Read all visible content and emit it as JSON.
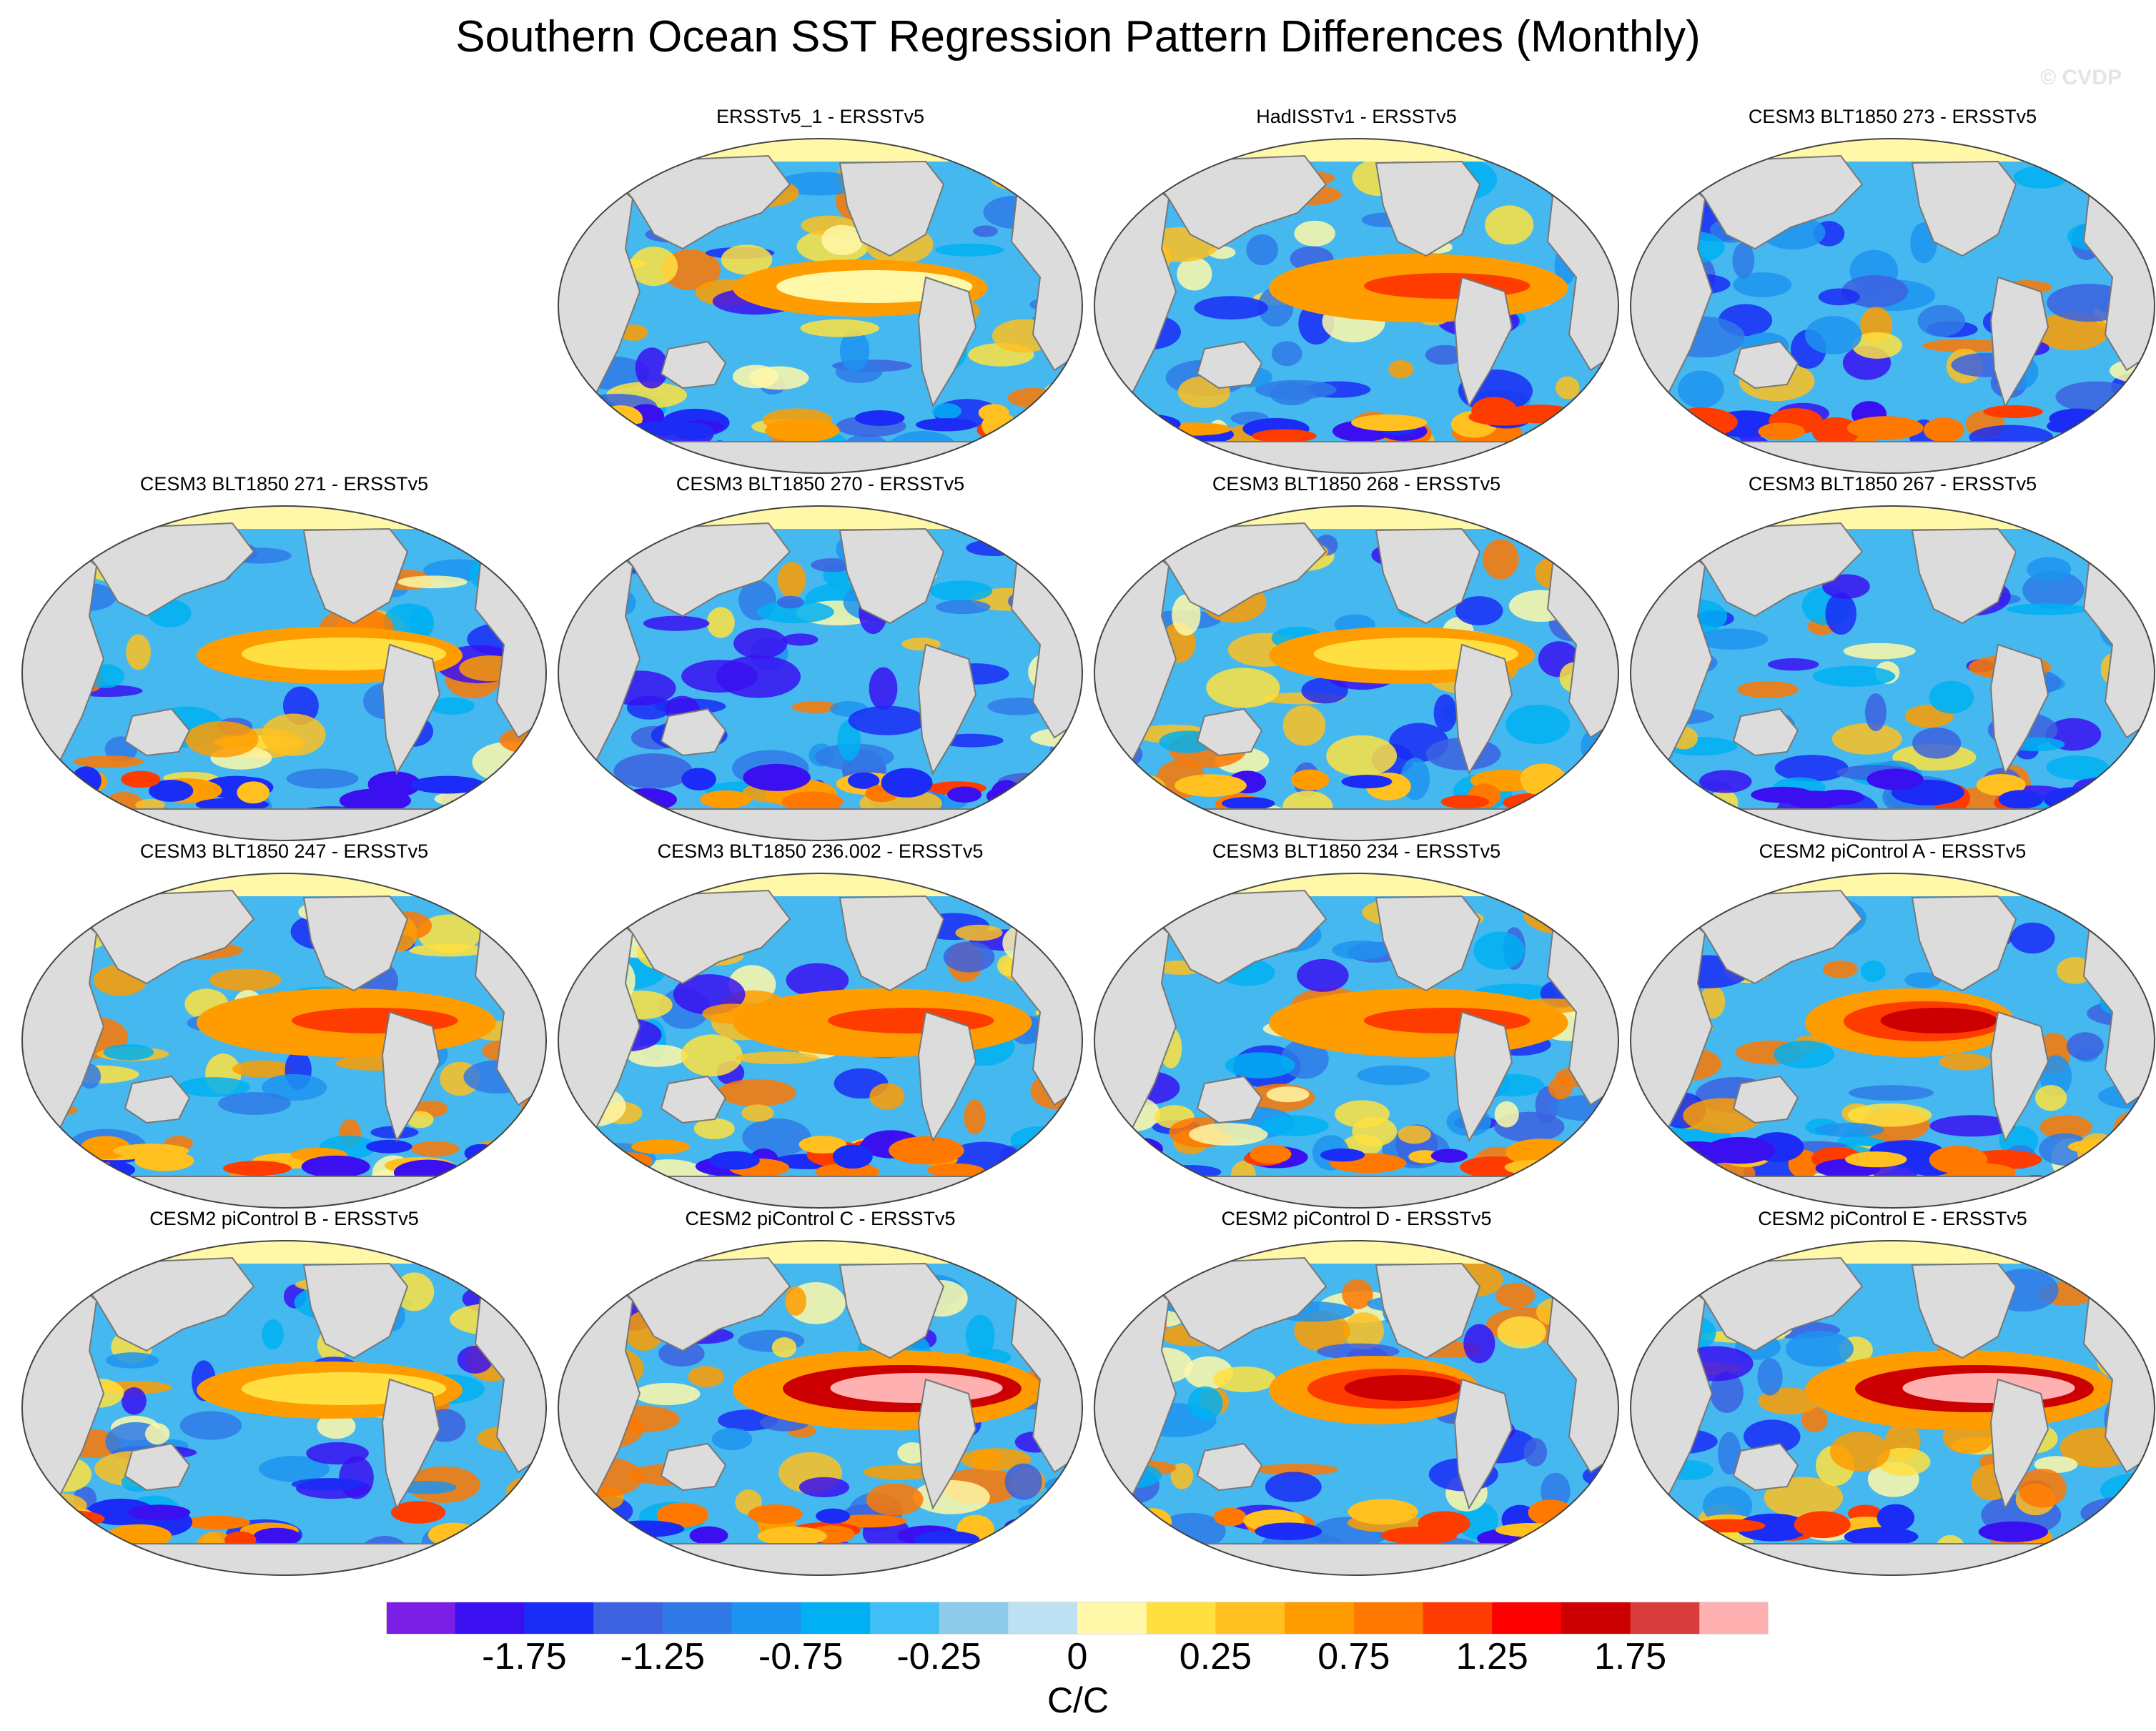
{
  "title": "Southern Ocean SST Regression Pattern Differences (Monthly)",
  "copyright": "© CVDP",
  "panels": [
    {
      "title": "",
      "empty": true,
      "pattern": "none"
    },
    {
      "title": "ERSSTv5_1 - ERSSTv5",
      "pattern": "weak_enso"
    },
    {
      "title": "HadISSTv1 - ERSSTv5",
      "pattern": "strong_enso"
    },
    {
      "title": "CESM3 BLT1850 273 - ERSSTv5",
      "pattern": "cool"
    },
    {
      "title": "CESM3 BLT1850 271 - ERSSTv5",
      "pattern": "moderate_enso"
    },
    {
      "title": "CESM3 BLT1850 270 - ERSSTv5",
      "pattern": "cool"
    },
    {
      "title": "CESM3 BLT1850 268 - ERSSTv5",
      "pattern": "moderate_enso"
    },
    {
      "title": "CESM3 BLT1850 267 - ERSSTv5",
      "pattern": "cool"
    },
    {
      "title": "CESM3 BLT1850 247 - ERSSTv5",
      "pattern": "strong_enso"
    },
    {
      "title": "CESM3 BLT1850 236.002 - ERSSTv5",
      "pattern": "strong_enso"
    },
    {
      "title": "CESM3 BLT1850 234 - ERSSTv5",
      "pattern": "strong_enso"
    },
    {
      "title": "CESM2 piControl A - ERSSTv5",
      "pattern": "narrow_enso"
    },
    {
      "title": "CESM2 piControl B - ERSSTv5",
      "pattern": "moderate_enso"
    },
    {
      "title": "CESM2 piControl C - ERSSTv5",
      "pattern": "very_strong_enso"
    },
    {
      "title": "CESM2 piControl D - ERSSTv5",
      "pattern": "narrow_enso"
    },
    {
      "title": "CESM2 piControl E - ERSSTv5",
      "pattern": "very_strong_enso"
    }
  ],
  "colorbar": {
    "colors": [
      "#7b1fe6",
      "#3a10f0",
      "#1a2cf5",
      "#3c62e0",
      "#2f7ae6",
      "#1d93f0",
      "#00b0f2",
      "#3fbff5",
      "#8dcbe8",
      "#bde0f2",
      "#fff8a8",
      "#ffe040",
      "#ffc020",
      "#ff9c00",
      "#ff7800",
      "#ff3c00",
      "#ff0000",
      "#cc0000",
      "#d83c3c",
      "#ffb0b0"
    ],
    "tick_labels": [
      "-1.75",
      "-1.25",
      "-0.75",
      "-0.25",
      "0",
      "0.25",
      "0.75",
      "1.25",
      "1.75"
    ],
    "units": "C/C"
  },
  "style_colors": {
    "land": "#dcdcdc",
    "coast": "#777777",
    "background_ocean": "#45b8f0"
  }
}
